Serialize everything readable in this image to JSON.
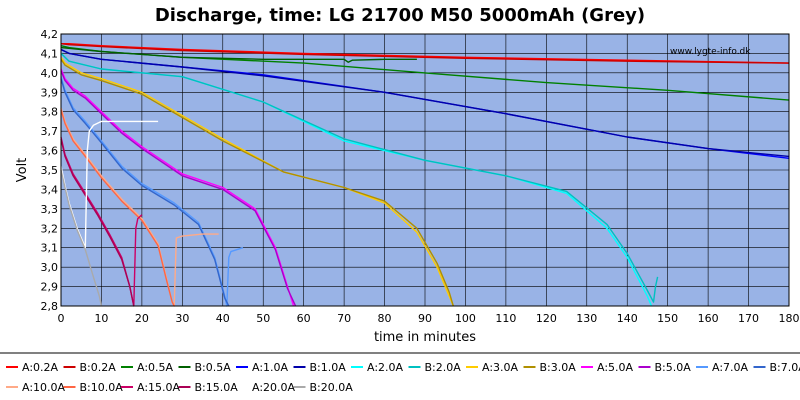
{
  "chart_data": {
    "type": "line",
    "title": "Discharge, time: LG 21700 M50 5000mAh (Grey)",
    "xlabel": "time in minutes",
    "ylabel": "Volt",
    "xlim": [
      0,
      180
    ],
    "ylim": [
      2.8,
      4.2
    ],
    "xticks": [
      0,
      10,
      20,
      30,
      40,
      50,
      60,
      70,
      80,
      90,
      100,
      110,
      120,
      130,
      140,
      150,
      160,
      170,
      180
    ],
    "yticks": [
      "2,8",
      "2,9",
      "3,0",
      "3,1",
      "3,2",
      "3,3",
      "3,4",
      "3,5",
      "3,6",
      "3,7",
      "3,8",
      "3,9",
      "4,0",
      "4,1",
      "4,2"
    ],
    "yticks_values": [
      2.8,
      2.9,
      3.0,
      3.1,
      3.2,
      3.3,
      3.4,
      3.5,
      3.6,
      3.7,
      3.8,
      3.9,
      4.0,
      4.1,
      4.2
    ],
    "grid": true,
    "legend_position": "bottom",
    "watermark": "www.lygte-info.dk",
    "background_color": "#99b3e6",
    "series": [
      {
        "name": "A:0.2A",
        "color": "#ff0000",
        "x": [
          0,
          2,
          10,
          30,
          60,
          100,
          140,
          180
        ],
        "y": [
          4.15,
          4.15,
          4.14,
          4.12,
          4.1,
          4.08,
          4.065,
          4.05
        ]
      },
      {
        "name": "B:0.2A",
        "color": "#cc0000",
        "x": [
          0,
          2,
          10,
          30,
          60,
          100,
          140,
          180
        ],
        "y": [
          4.15,
          4.145,
          4.135,
          4.115,
          4.095,
          4.075,
          4.06,
          4.05
        ]
      },
      {
        "name": "A:0.5A",
        "color": "#008000",
        "x": [
          0,
          2,
          10,
          30,
          60,
          90,
          120,
          150,
          180
        ],
        "y": [
          4.14,
          4.13,
          4.11,
          4.08,
          4.05,
          4.0,
          3.95,
          3.91,
          3.86
        ]
      },
      {
        "name": "B:0.5A",
        "color": "#006000",
        "x": [
          0,
          10,
          30,
          50,
          70,
          71,
          72,
          80,
          88
        ],
        "y": [
          4.13,
          4.11,
          4.08,
          4.07,
          4.07,
          4.055,
          4.065,
          4.07,
          4.07
        ]
      },
      {
        "name": "A:1.0A",
        "color": "#0000ff",
        "x": [
          0,
          2,
          10,
          30,
          50,
          80,
          110,
          140,
          160,
          180
        ],
        "y": [
          4.12,
          4.1,
          4.07,
          4.03,
          3.99,
          3.9,
          3.79,
          3.67,
          3.61,
          3.56
        ]
      },
      {
        "name": "B:1.0A",
        "color": "#0000aa",
        "x": [
          0,
          2,
          10,
          30,
          50,
          80,
          110,
          140,
          160,
          180
        ],
        "y": [
          4.12,
          4.1,
          4.07,
          4.03,
          3.985,
          3.9,
          3.79,
          3.67,
          3.61,
          3.57
        ]
      },
      {
        "name": "A:2.0A",
        "color": "#00ffff",
        "x": [
          0,
          2,
          10,
          30,
          50,
          70,
          90,
          110,
          125,
          135,
          140,
          145,
          146
        ],
        "y": [
          4.1,
          4.06,
          4.02,
          3.98,
          3.85,
          3.65,
          3.55,
          3.47,
          3.38,
          3.2,
          3.05,
          2.85,
          2.8
        ]
      },
      {
        "name": "B:2.0A",
        "color": "#00c0c0",
        "x": [
          0,
          2,
          10,
          30,
          50,
          70,
          90,
          110,
          125,
          135,
          140,
          145,
          146.5,
          147,
          147.5
        ],
        "y": [
          4.1,
          4.06,
          4.02,
          3.98,
          3.85,
          3.66,
          3.55,
          3.47,
          3.39,
          3.22,
          3.07,
          2.88,
          2.82,
          2.9,
          2.95
        ]
      },
      {
        "name": "A:3.0A",
        "color": "#ffcc00",
        "x": [
          0,
          1,
          5,
          10,
          20,
          30,
          40,
          55,
          70,
          80,
          88,
          93,
          96,
          97
        ],
        "y": [
          4.08,
          4.05,
          4.0,
          3.97,
          3.9,
          3.78,
          3.66,
          3.49,
          3.41,
          3.33,
          3.18,
          3.0,
          2.85,
          2.8
        ]
      },
      {
        "name": "B:3.0A",
        "color": "#b09000",
        "x": [
          0,
          1,
          5,
          10,
          20,
          30,
          40,
          55,
          70,
          80,
          88,
          93,
          96,
          97
        ],
        "y": [
          4.07,
          4.04,
          3.99,
          3.96,
          3.89,
          3.77,
          3.65,
          3.49,
          3.41,
          3.34,
          3.2,
          3.02,
          2.87,
          2.8
        ]
      },
      {
        "name": "A:5.0A",
        "color": "#ff00ff",
        "x": [
          0,
          1,
          3,
          6,
          10,
          15,
          20,
          30,
          40,
          48,
          53,
          56,
          57.5
        ],
        "y": [
          4.02,
          3.97,
          3.92,
          3.88,
          3.8,
          3.7,
          3.62,
          3.48,
          3.41,
          3.3,
          3.1,
          2.9,
          2.8
        ]
      },
      {
        "name": "B:5.0A",
        "color": "#aa00cc",
        "x": [
          0,
          1,
          3,
          6,
          10,
          15,
          20,
          30,
          40,
          48,
          53,
          56,
          58
        ],
        "y": [
          4.01,
          3.96,
          3.91,
          3.87,
          3.79,
          3.69,
          3.61,
          3.47,
          3.4,
          3.29,
          3.09,
          2.89,
          2.8
        ]
      },
      {
        "name": "A:7.0A",
        "color": "#5599ff",
        "x": [
          0,
          1,
          3,
          6,
          10,
          15,
          20,
          28,
          34,
          38,
          40.5,
          41,
          41.5,
          42,
          45
        ],
        "y": [
          3.98,
          3.91,
          3.82,
          3.75,
          3.65,
          3.52,
          3.43,
          3.33,
          3.23,
          3.05,
          2.85,
          2.8,
          3.05,
          3.08,
          3.1
        ]
      },
      {
        "name": "B:7.0A",
        "color": "#3366cc",
        "x": [
          0,
          1,
          3,
          6,
          10,
          15,
          20,
          28,
          34,
          38,
          40.5,
          41.5
        ],
        "y": [
          3.97,
          3.9,
          3.81,
          3.74,
          3.64,
          3.51,
          3.42,
          3.32,
          3.22,
          3.04,
          2.84,
          2.8
        ]
      },
      {
        "name": "A:10.0A",
        "color": "#ffaa88",
        "x": [
          0,
          1,
          3,
          6,
          10,
          15,
          20,
          24,
          26,
          27.5,
          28,
          28.5,
          30,
          35,
          39
        ],
        "y": [
          3.82,
          3.75,
          3.66,
          3.58,
          3.47,
          3.35,
          3.25,
          3.12,
          2.95,
          2.82,
          2.8,
          3.15,
          3.16,
          3.17,
          3.17
        ]
      },
      {
        "name": "B:10.0A",
        "color": "#ff6644",
        "x": [
          0,
          1,
          3,
          6,
          10,
          15,
          20,
          24,
          26,
          27.5,
          28
        ],
        "y": [
          3.81,
          3.74,
          3.65,
          3.57,
          3.46,
          3.34,
          3.24,
          3.11,
          2.94,
          2.82,
          2.8
        ]
      },
      {
        "name": "A:15.0A",
        "color": "#cc0066",
        "x": [
          0,
          1,
          3,
          6,
          9,
          12,
          15,
          17,
          18,
          18.5,
          19,
          20
        ],
        "y": [
          3.67,
          3.58,
          3.48,
          3.38,
          3.28,
          3.17,
          3.05,
          2.9,
          2.8,
          3.2,
          3.25,
          3.27
        ]
      },
      {
        "name": "B:15.0A",
        "color": "#aa0055",
        "x": [
          0,
          1,
          3,
          6,
          9,
          12,
          15,
          17,
          18
        ],
        "y": [
          3.66,
          3.57,
          3.47,
          3.37,
          3.27,
          3.16,
          3.04,
          2.9,
          2.8
        ]
      },
      {
        "name": "A:20.0A",
        "color": "#ffffff",
        "x": [
          0,
          1,
          2,
          4,
          6,
          6.5,
          7,
          8,
          10,
          15,
          20,
          24
        ],
        "y": [
          3.52,
          3.42,
          3.33,
          3.2,
          3.1,
          3.6,
          3.7,
          3.73,
          3.75,
          3.75,
          3.75,
          3.75
        ]
      },
      {
        "name": "B:20.0A",
        "color": "#aaaaaa",
        "x": [
          0,
          1,
          2,
          4,
          6,
          8,
          9.5,
          10
        ],
        "y": [
          3.5,
          3.41,
          3.32,
          3.19,
          3.09,
          2.95,
          2.85,
          2.8
        ]
      }
    ]
  }
}
